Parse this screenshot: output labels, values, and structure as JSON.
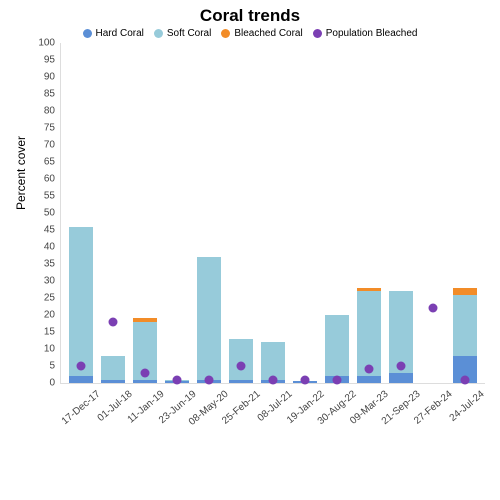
{
  "chart": {
    "title": "Coral trends",
    "title_fontsize": 17,
    "ylabel": "Percent cover",
    "ylabel_fontsize": 12,
    "ylim": [
      0,
      100
    ],
    "ytick_step": 5,
    "legend_fontsize": 10,
    "tick_fontsize": 10,
    "colors": {
      "hard": "#5b8fd6",
      "soft": "#97cbda",
      "bleached": "#f28c28",
      "population": "#7b3fb3"
    },
    "series": [
      {
        "key": "hard",
        "label": "Hard Coral",
        "type": "bar"
      },
      {
        "key": "soft",
        "label": "Soft Coral",
        "type": "bar"
      },
      {
        "key": "bleached",
        "label": "Bleached Coral",
        "type": "bar"
      },
      {
        "key": "population",
        "label": "Population Bleached",
        "type": "point"
      }
    ],
    "categories": [
      "17-Dec-17",
      "01-Jul-18",
      "11-Jan-19",
      "23-Jun-19",
      "08-May-20",
      "25-Feb-21",
      "08-Jul-21",
      "19-Jan-22",
      "30-Aug-22",
      "09-Mar-23",
      "21-Sep-23",
      "27-Feb-24",
      "24-Jul-24"
    ],
    "data": [
      {
        "hard": 2,
        "soft": 44,
        "bleached": 0,
        "population": 5
      },
      {
        "hard": 1,
        "soft": 7,
        "bleached": 0,
        "population": 18
      },
      {
        "hard": 1,
        "soft": 17,
        "bleached": 1,
        "population": 3
      },
      {
        "hard": 0.5,
        "soft": 0.5,
        "bleached": 0,
        "population": 1
      },
      {
        "hard": 1,
        "soft": 36,
        "bleached": 0,
        "population": 1
      },
      {
        "hard": 1,
        "soft": 12,
        "bleached": 0,
        "population": 5
      },
      {
        "hard": 1,
        "soft": 11,
        "bleached": 0,
        "population": 1
      },
      {
        "hard": 0.5,
        "soft": 0,
        "bleached": 0,
        "population": 1
      },
      {
        "hard": 2,
        "soft": 18,
        "bleached": 0,
        "population": 1
      },
      {
        "hard": 2,
        "soft": 25,
        "bleached": 1,
        "population": 4
      },
      {
        "hard": 3,
        "soft": 24,
        "bleached": 0,
        "population": 5
      },
      {
        "hard": 0,
        "soft": 0,
        "bleached": 0,
        "population": 22
      },
      {
        "hard": 8,
        "soft": 18,
        "bleached": 2,
        "population": 1
      }
    ]
  }
}
